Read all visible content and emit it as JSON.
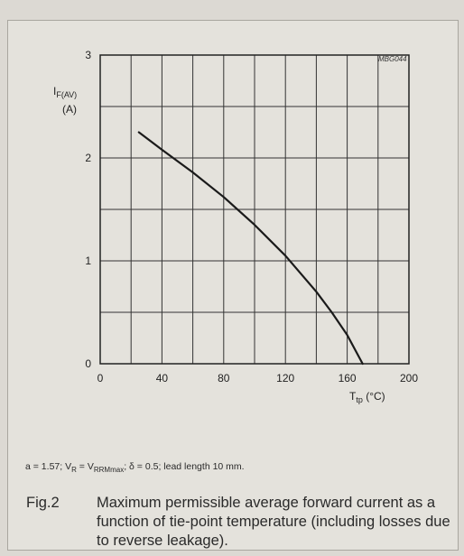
{
  "figure_code": "MBG044",
  "footnote": "a = 1.57; VR = VRRMmax; δ = 0.5; lead length 10 mm.",
  "caption": {
    "label": "Fig.2",
    "text": "Maximum permissible average forward current as a function of tie-point temperature (including losses due to reverse leakage)."
  },
  "chart_data": {
    "type": "line",
    "ylabel": "Iₑ(AV)",
    "ylabel_main": "I",
    "ylabel_sub": "F(AV)",
    "ylabel_unit": "(A)",
    "xlabel_main": "T",
    "xlabel_sub": "tp",
    "xlabel_unit": "(°C)",
    "xlim": [
      0,
      200
    ],
    "ylim": [
      0,
      3
    ],
    "x_ticks": [
      0,
      40,
      80,
      120,
      160,
      200
    ],
    "y_ticks": [
      0,
      1,
      2,
      3
    ],
    "grid": true,
    "series": [
      {
        "x": [
          25,
          40,
          60,
          80,
          100,
          120,
          140,
          150,
          160,
          165,
          170
        ],
        "y": [
          2.25,
          2.08,
          1.86,
          1.62,
          1.35,
          1.05,
          0.7,
          0.5,
          0.28,
          0.14,
          0.0
        ]
      }
    ]
  }
}
